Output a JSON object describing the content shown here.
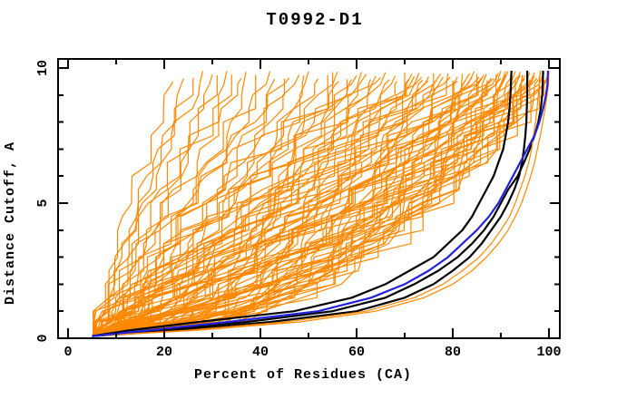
{
  "window_title": "T0992-D1",
  "chart_data": {
    "type": "line",
    "title": "T0992-D1",
    "xlabel": "Percent of Residues (CA)",
    "ylabel": "Distance Cutoff, A",
    "xlim": [
      0,
      100
    ],
    "ylim": [
      0,
      10
    ],
    "grid": false,
    "legend": false,
    "background_color": "#ffffff",
    "frame_color": "#000000",
    "x_major_ticks": [
      0,
      20,
      40,
      60,
      80,
      100
    ],
    "x_minor_ticks": [
      10,
      30,
      50,
      70,
      90
    ],
    "y_major_ticks": [
      0,
      5,
      10
    ],
    "y_minor_ticks": [
      1,
      2,
      3,
      4,
      6,
      7,
      8,
      9
    ],
    "description": "Cumulative curves: percent of CA residues (x) under a distance cutoff in Angstroms (y). Orange = ensemble of predicted models, black = three highlighted models, blue = one highlighted model.",
    "cutoff_levels": [
      0.08,
      0.3,
      0.6,
      1,
      1.5,
      2,
      2.5,
      3,
      3.5,
      4,
      4.5,
      5,
      5.5,
      6,
      6.5,
      7,
      7.5,
      8,
      8.5,
      9,
      9.4,
      9.9
    ],
    "highlight_series": [
      {
        "name": "highlight-black-1",
        "color": "#000000",
        "width": 2.2,
        "pct": [
          5,
          13,
          27,
          47,
          59,
          66,
          71,
          76,
          79,
          82,
          84,
          85.5,
          87,
          88.5,
          89.5,
          90.5,
          91,
          91.5,
          91.8,
          92,
          92.1,
          92.2
        ]
      },
      {
        "name": "highlight-black-2",
        "color": "#000000",
        "width": 2.2,
        "pct": [
          5,
          19,
          37,
          55,
          66,
          72,
          77,
          81,
          84,
          86.5,
          88.5,
          90,
          91.5,
          93.5,
          94.8,
          96,
          97,
          97.8,
          98.3,
          98.6,
          98.7,
          98.8
        ]
      },
      {
        "name": "highlight-black-3",
        "color": "#000000",
        "width": 2.2,
        "pct": [
          5,
          23,
          42,
          60,
          70,
          76,
          80,
          83.5,
          86,
          88,
          90,
          91.5,
          92.8,
          93.8,
          94.4,
          94.8,
          95.1,
          95.3,
          95.4,
          95.5,
          95.5,
          95.5
        ]
      },
      {
        "name": "orange-envelope-1",
        "color": "#ff8800",
        "width": 1.2,
        "pct": [
          5,
          25,
          45,
          62,
          72,
          78,
          82,
          85.5,
          88,
          90,
          91.8,
          93,
          94,
          95,
          95.8,
          96.4,
          96.8,
          97.2,
          97.5,
          97.8,
          98,
          98.2
        ]
      },
      {
        "name": "orange-envelope-2",
        "color": "#ff8800",
        "width": 1.2,
        "pct": [
          5,
          27,
          48,
          64,
          74,
          80,
          84,
          87,
          89.5,
          91.5,
          93,
          94.3,
          95.3,
          96.2,
          97,
          97.6,
          98.2,
          98.7,
          99.2,
          99.6,
          99.9,
          100
        ]
      },
      {
        "name": "highlight-blue",
        "color": "#2222dd",
        "width": 2.2,
        "pct": [
          5,
          17,
          33,
          52,
          63,
          70,
          75,
          79,
          82,
          85,
          87.5,
          89.5,
          91,
          92.5,
          94,
          95.5,
          97,
          98,
          98.8,
          99.4,
          99.7,
          99.8
        ]
      }
    ],
    "ensemble": {
      "name": "model-ensemble",
      "color": "#ff8800",
      "width": 1.2,
      "start_pct": 5,
      "curve_params": [
        [
          22,
          1.35
        ],
        [
          26,
          1.2
        ],
        [
          30,
          1.15
        ],
        [
          33,
          1.0
        ],
        [
          36,
          1.1
        ],
        [
          39,
          0.95
        ],
        [
          42,
          1.05
        ],
        [
          45,
          0.9
        ],
        [
          48,
          1.0
        ],
        [
          50,
          0.85
        ],
        [
          52,
          0.95
        ],
        [
          54,
          0.8
        ],
        [
          56,
          0.9
        ],
        [
          58,
          0.75
        ],
        [
          60,
          0.95
        ],
        [
          61,
          0.7
        ],
        [
          63,
          0.85
        ],
        [
          64,
          0.65
        ],
        [
          66,
          0.8
        ],
        [
          67,
          0.9
        ],
        [
          68,
          0.6
        ],
        [
          70,
          0.75
        ],
        [
          71,
          0.85
        ],
        [
          72,
          0.6
        ],
        [
          73,
          0.7
        ],
        [
          74,
          0.8
        ],
        [
          75,
          0.55
        ],
        [
          76,
          0.65
        ],
        [
          77,
          0.75
        ],
        [
          78,
          0.6
        ],
        [
          79,
          0.7
        ],
        [
          80,
          0.5
        ],
        [
          81,
          0.6
        ],
        [
          82,
          0.68
        ],
        [
          83,
          0.55
        ],
        [
          84,
          0.62
        ],
        [
          85,
          0.5
        ],
        [
          86,
          0.58
        ],
        [
          86,
          0.66
        ],
        [
          87,
          0.52
        ],
        [
          88,
          0.6
        ],
        [
          88,
          0.48
        ],
        [
          89,
          0.55
        ],
        [
          90,
          0.5
        ],
        [
          90,
          0.62
        ],
        [
          91,
          0.45
        ],
        [
          91,
          0.58
        ],
        [
          92,
          0.5
        ],
        [
          92,
          0.42
        ],
        [
          93,
          0.55
        ],
        [
          93,
          0.47
        ],
        [
          94,
          0.5
        ],
        [
          94,
          0.44
        ],
        [
          95,
          0.52
        ],
        [
          95,
          0.46
        ],
        [
          96,
          0.42
        ],
        [
          96,
          0.5
        ],
        [
          97,
          0.45
        ],
        [
          97,
          0.55
        ],
        [
          98,
          0.48
        ],
        [
          98,
          0.4
        ],
        [
          99,
          0.5
        ],
        [
          99,
          0.44
        ],
        [
          100,
          0.46
        ],
        [
          100,
          0.52
        ],
        [
          96.5,
          0.6
        ],
        [
          93.5,
          0.65
        ],
        [
          89.5,
          0.7
        ],
        [
          87.5,
          0.75
        ],
        [
          85.5,
          0.8
        ],
        [
          83.5,
          0.85
        ],
        [
          81.5,
          0.9
        ],
        [
          79.5,
          0.95
        ],
        [
          77.5,
          1.0
        ],
        [
          75.5,
          1.05
        ],
        [
          73.5,
          0.9
        ],
        [
          71.5,
          1.1
        ],
        [
          69,
          1.0
        ],
        [
          65,
          1.15
        ],
        [
          62,
          1.2
        ],
        [
          57,
          1.25
        ],
        [
          46,
          1.3
        ],
        [
          34,
          1.25
        ],
        [
          28,
          1.3
        ],
        [
          97.5,
          0.58
        ],
        [
          94.5,
          0.63
        ],
        [
          91.5,
          0.68
        ],
        [
          88.5,
          0.73
        ],
        [
          86.5,
          0.78
        ],
        [
          84.5,
          0.83
        ],
        [
          24,
          1.1
        ],
        [
          31,
          0.9
        ],
        [
          37,
          0.8
        ],
        [
          43,
          0.75
        ],
        [
          49,
          0.7
        ],
        [
          55,
          0.6
        ],
        [
          59,
          0.55
        ]
      ]
    }
  }
}
